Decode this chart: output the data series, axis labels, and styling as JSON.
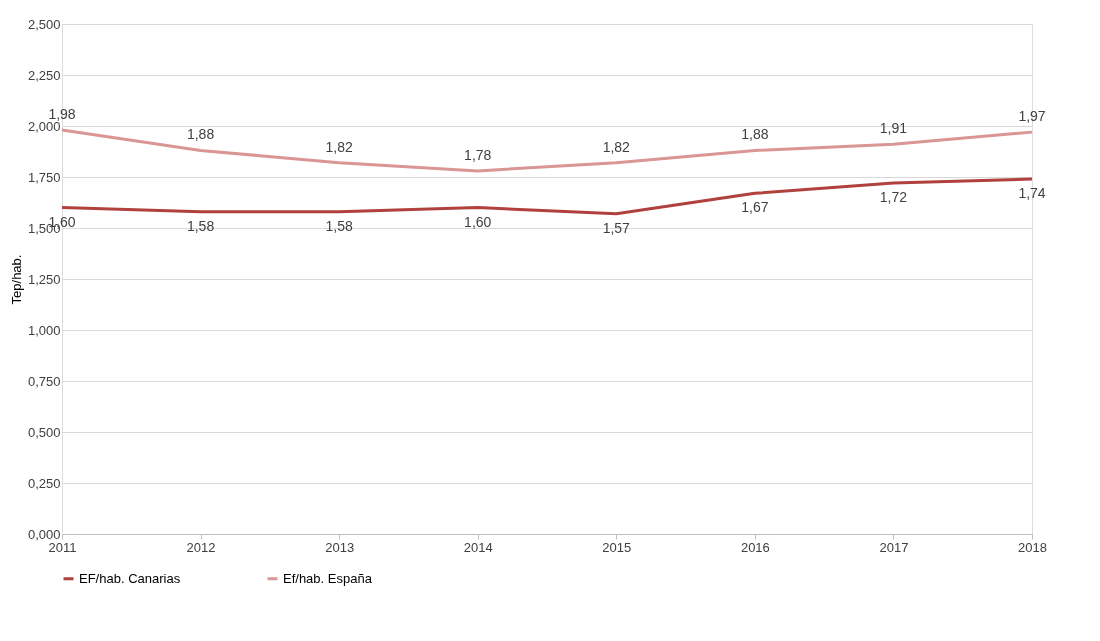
{
  "chart_data": {
    "type": "line",
    "ylabel": "Tep/hab.",
    "categories": [
      "2011",
      "2012",
      "2013",
      "2014",
      "2015",
      "2016",
      "2017",
      "2018"
    ],
    "series": [
      {
        "name": "EF/hab. Canarias",
        "color": "#b0413e",
        "values": [
          1.6,
          1.58,
          1.58,
          1.6,
          1.57,
          1.67,
          1.72,
          1.74
        ],
        "value_labels": [
          "1,60",
          "1,58",
          "1,58",
          "1,60",
          "1,57",
          "1,67",
          "1,72",
          "1,74"
        ]
      },
      {
        "name": "Ef/hab. España",
        "color": "#d99694",
        "values": [
          1.98,
          1.88,
          1.82,
          1.78,
          1.82,
          1.88,
          1.91,
          1.97
        ],
        "value_labels": [
          "1,98",
          "1,88",
          "1,82",
          "1,78",
          "1,82",
          "1,88",
          "1,91",
          "1,97"
        ]
      }
    ],
    "ylim": [
      0,
      2.5
    ],
    "yticks": [
      {
        "value": 0,
        "label": "0,000"
      },
      {
        "value": 0.25,
        "label": "0,250"
      },
      {
        "value": 0.5,
        "label": "0,500"
      },
      {
        "value": 0.75,
        "label": "0,750"
      },
      {
        "value": 1,
        "label": "1,000"
      },
      {
        "value": 1.25,
        "label": "1,250"
      },
      {
        "value": 1.5,
        "label": "1,500"
      },
      {
        "value": 1.75,
        "label": "1,750"
      },
      {
        "value": 2,
        "label": "2,000"
      },
      {
        "value": 2.25,
        "label": "2,250"
      },
      {
        "value": 2.5,
        "label": "2,500"
      }
    ],
    "grid": "y",
    "legend": "bottom",
    "marker": "none",
    "line_style": "solid"
  }
}
